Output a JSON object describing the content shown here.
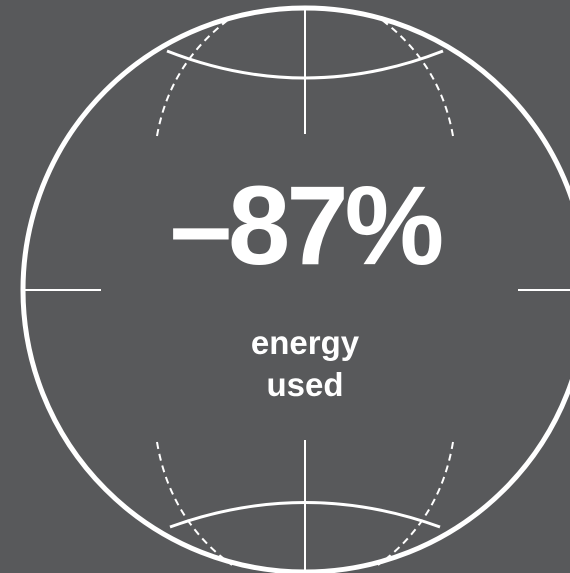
{
  "stat": {
    "value": "–87%"
  },
  "caption": {
    "line1": "energy",
    "line2": "used"
  },
  "colors": {
    "background": "#58595b",
    "foreground": "#ffffff"
  }
}
